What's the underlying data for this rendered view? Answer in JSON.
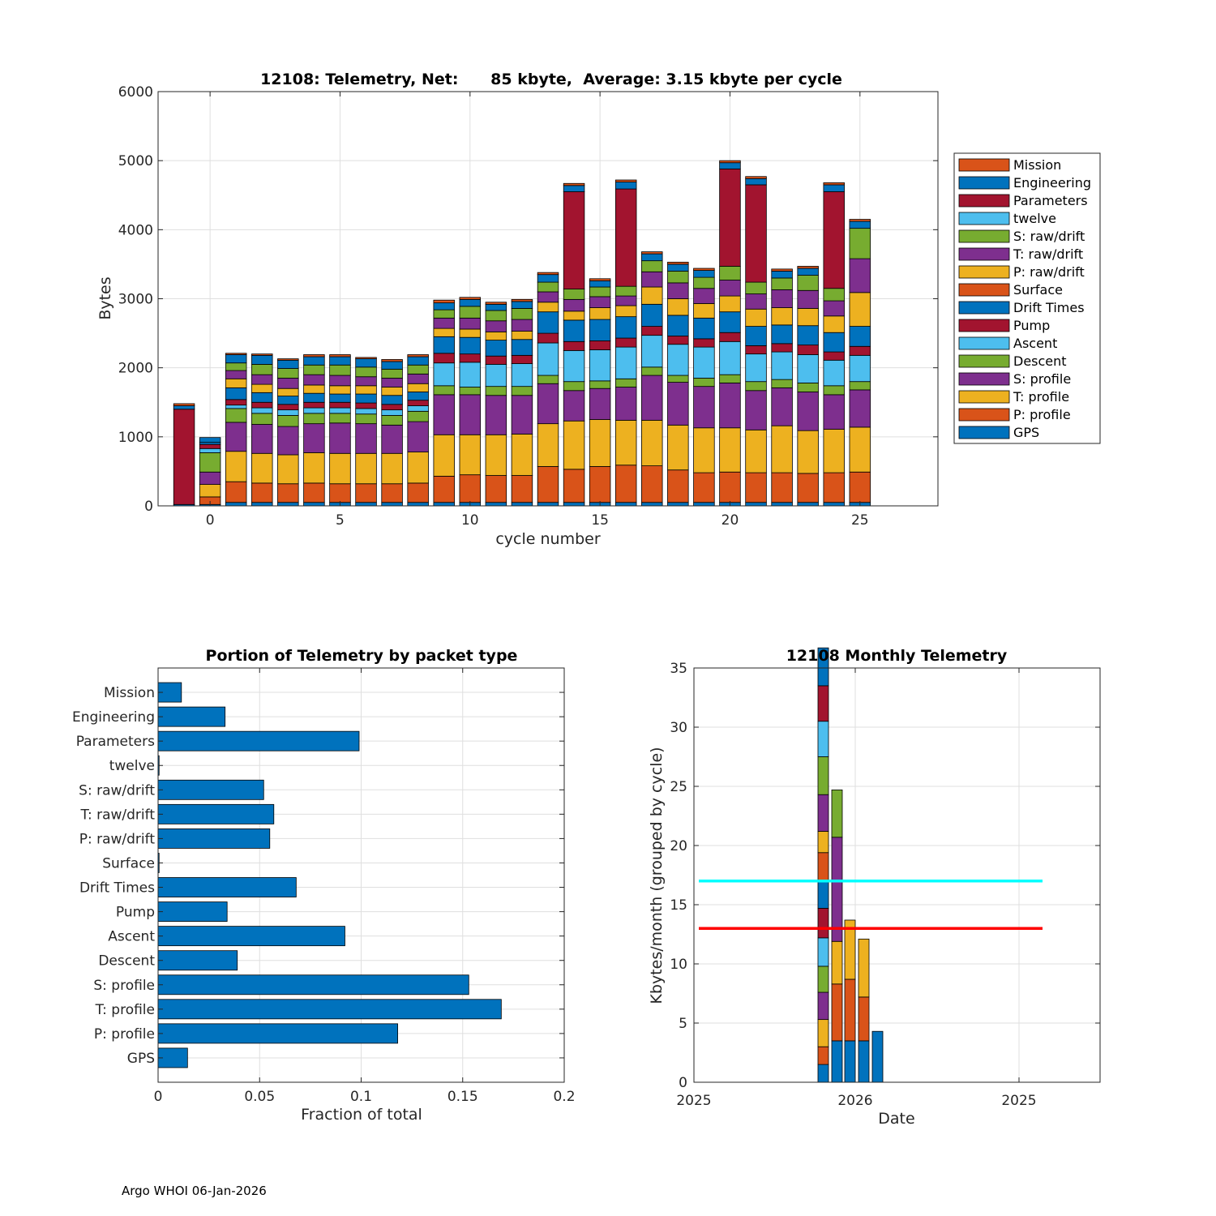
{
  "footer": "Argo WHOI 06-Jan-2026",
  "colors": {
    "GPS": "#0072BD",
    "P: profile": "#D95319",
    "T: profile": "#EDB120",
    "S: profile": "#7E2F8E",
    "Descent": "#77AC30",
    "Ascent": "#4DBEEE",
    "Pump": "#A2142F",
    "Drift Times": "#0072BD",
    "Surface": "#D95319",
    "P: raw/drift": "#EDB120",
    "T: raw/drift": "#7E2F8E",
    "S: raw/drift": "#77AC30",
    "twelve": "#4DBEEE",
    "Parameters": "#A2142F",
    "Engineering": "#0072BD",
    "Mission": "#D95319"
  },
  "chart_data": [
    {
      "type": "bar",
      "stacked": true,
      "title": "12108: Telemetry, Net:      85 kbyte,  Average: 3.15 kbyte per cycle",
      "xlabel": "cycle number",
      "ylabel": "Bytes",
      "xlim": [
        -2,
        28
      ],
      "ylim": [
        0,
        6000
      ],
      "xticks": [
        0,
        5,
        10,
        15,
        20,
        25
      ],
      "yticks": [
        0,
        1000,
        2000,
        3000,
        4000,
        5000,
        6000
      ],
      "legend_position": "outside-right",
      "legend": [
        "Mission",
        "Engineering",
        "Parameters",
        "twelve",
        "S: raw/drift",
        "T: raw/drift",
        "P: raw/drift",
        "Surface",
        "Drift Times",
        "Pump",
        "Ascent",
        "Descent",
        "S: profile",
        "T: profile",
        "P: profile",
        "GPS"
      ],
      "stack_order": [
        "GPS",
        "P: profile",
        "T: profile",
        "S: profile",
        "Descent",
        "Ascent",
        "Pump",
        "Drift Times",
        "Surface",
        "P: raw/drift",
        "T: raw/drift",
        "S: raw/drift",
        "twelve",
        "Parameters",
        "Engineering",
        "Mission"
      ],
      "cycles": [
        -1,
        0,
        1,
        2,
        3,
        4,
        5,
        6,
        7,
        8,
        9,
        10,
        11,
        12,
        13,
        14,
        15,
        16,
        17,
        18,
        19,
        20,
        21,
        22,
        23,
        24,
        25
      ],
      "series": [
        {
          "name": "GPS",
          "values": [
            20,
            20,
            50,
            50,
            50,
            50,
            50,
            50,
            50,
            50,
            50,
            50,
            50,
            50,
            50,
            50,
            50,
            50,
            50,
            50,
            50,
            50,
            50,
            50,
            50,
            50,
            50
          ]
        },
        {
          "name": "P: profile",
          "values": [
            0,
            110,
            300,
            280,
            270,
            280,
            270,
            270,
            270,
            280,
            380,
            400,
            390,
            390,
            520,
            480,
            520,
            540,
            530,
            470,
            430,
            440,
            430,
            430,
            420,
            430,
            440
          ]
        },
        {
          "name": "T: profile",
          "values": [
            0,
            180,
            440,
            430,
            420,
            440,
            440,
            440,
            440,
            450,
            600,
            580,
            590,
            600,
            620,
            700,
            680,
            650,
            660,
            650,
            650,
            640,
            620,
            680,
            620,
            630,
            650
          ]
        },
        {
          "name": "S: profile",
          "values": [
            0,
            180,
            420,
            420,
            410,
            420,
            440,
            430,
            410,
            440,
            580,
            580,
            570,
            560,
            580,
            440,
            450,
            480,
            650,
            620,
            600,
            650,
            570,
            550,
            560,
            500,
            540
          ]
        },
        {
          "name": "Descent",
          "values": [
            0,
            280,
            200,
            160,
            160,
            150,
            140,
            140,
            140,
            150,
            130,
            110,
            130,
            130,
            120,
            130,
            110,
            120,
            120,
            100,
            120,
            120,
            130,
            120,
            130,
            130,
            120
          ]
        },
        {
          "name": "Ascent",
          "values": [
            0,
            60,
            50,
            80,
            80,
            80,
            80,
            80,
            80,
            80,
            330,
            360,
            320,
            330,
            470,
            450,
            450,
            460,
            460,
            450,
            450,
            480,
            400,
            400,
            410,
            370,
            380
          ]
        },
        {
          "name": "Pump",
          "values": [
            1380,
            60,
            80,
            80,
            80,
            80,
            80,
            80,
            80,
            80,
            140,
            120,
            120,
            120,
            140,
            130,
            130,
            130,
            130,
            120,
            120,
            130,
            120,
            120,
            140,
            120,
            130
          ]
        },
        {
          "name": "Drift Times",
          "values": [
            0,
            30,
            170,
            140,
            120,
            130,
            120,
            130,
            130,
            120,
            240,
            240,
            230,
            230,
            310,
            310,
            310,
            310,
            320,
            300,
            300,
            300,
            280,
            270,
            280,
            280,
            290
          ]
        },
        {
          "name": "Surface",
          "values": [
            0,
            0,
            0,
            0,
            0,
            0,
            0,
            0,
            0,
            0,
            0,
            0,
            0,
            0,
            0,
            0,
            0,
            0,
            0,
            0,
            0,
            0,
            0,
            0,
            0,
            0,
            0
          ]
        },
        {
          "name": "P: raw/drift",
          "values": [
            0,
            0,
            130,
            120,
            110,
            120,
            120,
            120,
            120,
            120,
            120,
            120,
            120,
            120,
            140,
            130,
            170,
            160,
            250,
            240,
            210,
            230,
            250,
            250,
            250,
            240,
            490
          ]
        },
        {
          "name": "T: raw/drift",
          "values": [
            0,
            0,
            120,
            140,
            150,
            150,
            150,
            130,
            130,
            140,
            150,
            160,
            160,
            170,
            150,
            170,
            160,
            140,
            220,
            230,
            220,
            230,
            220,
            260,
            260,
            220,
            490
          ]
        },
        {
          "name": "S: raw/drift",
          "values": [
            0,
            0,
            110,
            150,
            140,
            140,
            150,
            140,
            130,
            130,
            120,
            170,
            150,
            160,
            140,
            150,
            140,
            140,
            160,
            170,
            160,
            200,
            170,
            170,
            220,
            180,
            440
          ]
        },
        {
          "name": "twelve",
          "values": [
            0,
            0,
            0,
            0,
            0,
            0,
            0,
            0,
            0,
            0,
            0,
            0,
            0,
            0,
            0,
            0,
            0,
            0,
            0,
            0,
            0,
            0,
            0,
            0,
            0,
            0,
            0
          ]
        },
        {
          "name": "Parameters",
          "values": [
            0,
            0,
            0,
            0,
            0,
            0,
            0,
            0,
            0,
            0,
            0,
            0,
            0,
            0,
            0,
            1410,
            0,
            1410,
            0,
            0,
            0,
            1410,
            1410,
            0,
            0,
            1400,
            0
          ]
        },
        {
          "name": "Engineering",
          "values": [
            50,
            70,
            120,
            130,
            120,
            120,
            120,
            120,
            110,
            120,
            100,
            100,
            90,
            100,
            110,
            90,
            90,
            100,
            100,
            100,
            100,
            90,
            90,
            100,
            100,
            100,
            100
          ]
        },
        {
          "name": "Mission",
          "values": [
            30,
            0,
            20,
            20,
            20,
            30,
            30,
            20,
            30,
            30,
            40,
            30,
            30,
            30,
            30,
            30,
            30,
            30,
            30,
            30,
            30,
            30,
            30,
            30,
            30,
            30,
            30
          ]
        }
      ]
    },
    {
      "type": "bar",
      "orientation": "horizontal",
      "title": "Portion of Telemetry by packet type",
      "xlabel": "Fraction of total",
      "xlim": [
        0,
        0.2
      ],
      "xticks": [
        0,
        0.05,
        0.1,
        0.15,
        0.2
      ],
      "xtick_labels": [
        "0",
        "0.05",
        "0.1",
        "0.15",
        "0.2"
      ],
      "categories": [
        "GPS",
        "P: profile",
        "T: profile",
        "S: profile",
        "Descent",
        "Ascent",
        "Pump",
        "Drift Times",
        "Surface",
        "P: raw/drift",
        "T: raw/drift",
        "S: raw/drift",
        "twelve",
        "Parameters",
        "Engineering",
        "Mission"
      ],
      "values": [
        0.0145,
        0.118,
        0.169,
        0.153,
        0.039,
        0.092,
        0.034,
        0.068,
        0.0005,
        0.055,
        0.057,
        0.052,
        0.0005,
        0.099,
        0.033,
        0.0115
      ]
    },
    {
      "type": "bar",
      "stacked": true,
      "title": "12108 Monthly Telemetry",
      "xlabel": "Date",
      "ylabel": "Kbytes/month (grouped by cycle)",
      "ylim": [
        0,
        35
      ],
      "yticks": [
        0,
        5,
        10,
        15,
        20,
        25,
        30,
        35
      ],
      "xtick_labels": [
        "2025",
        "2026",
        "2025"
      ],
      "reference_lines": [
        {
          "value": 17,
          "color": "#00FFFF"
        },
        {
          "value": 13,
          "color": "#FF0000"
        }
      ],
      "bars": [
        {
          "segments": [
            1.5,
            1.5,
            2.3,
            2.3,
            2.2,
            2.4,
            2.5,
            2.3,
            2.4,
            1.8,
            3.1,
            3.2,
            3.0,
            3.0,
            3.2
          ]
        },
        {
          "segments": [
            3.5,
            4.8,
            3.6,
            8.8,
            4.0
          ]
        },
        {
          "segments": [
            3.5,
            5.2,
            5.0
          ]
        },
        {
          "segments": [
            3.5,
            3.7,
            4.9
          ]
        },
        {
          "segments": [
            4.3
          ]
        }
      ]
    }
  ]
}
